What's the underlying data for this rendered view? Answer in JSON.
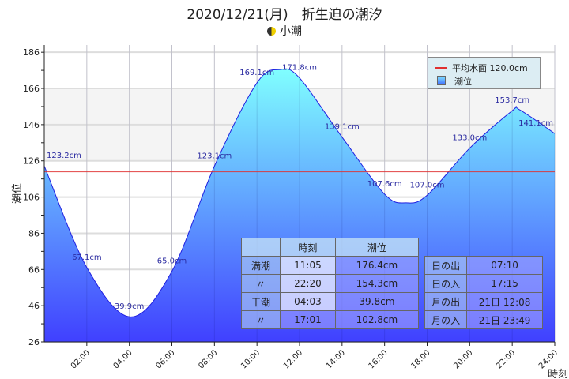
{
  "chart_data": {
    "type": "area",
    "title": "2020/12/21(月)　折生迫の潮汐",
    "subtitle": "小潮",
    "xlabel": "時刻",
    "ylabel": "潮位",
    "xlim": [
      0,
      24
    ],
    "ylim": [
      26,
      190
    ],
    "yticks": [
      26,
      46,
      66,
      86,
      106,
      126,
      146,
      166,
      186
    ],
    "xticks": [
      "02:00",
      "04:00",
      "06:00",
      "08:00",
      "10:00",
      "12:00",
      "14:00",
      "16:00",
      "18:00",
      "20:00",
      "22:00",
      "24:00"
    ],
    "mean_level": 120.0,
    "legend": {
      "mean_label": "平均水面 120.0cm",
      "series_label": "潮位",
      "position": "top-right"
    },
    "points": [
      [
        0,
        123.2
      ],
      [
        2,
        67.1
      ],
      [
        4.05,
        39.8
      ],
      [
        6,
        65.0
      ],
      [
        8,
        123.1
      ],
      [
        10,
        169.1
      ],
      [
        11.083,
        176.4
      ],
      [
        12,
        171.8
      ],
      [
        14,
        139.1
      ],
      [
        16,
        107.6
      ],
      [
        17.017,
        102.8
      ],
      [
        18,
        107.0
      ],
      [
        20,
        133.0
      ],
      [
        22,
        153.7
      ],
      [
        22.333,
        154.3
      ],
      [
        24,
        141.1
      ]
    ],
    "labels": [
      {
        "x": 0,
        "y": 123.2,
        "text": "123.2cm"
      },
      {
        "x": 2,
        "y": 67.1,
        "text": "67.1cm"
      },
      {
        "x": 4,
        "y": 39.9,
        "text": "39.9cm"
      },
      {
        "x": 6,
        "y": 65.0,
        "text": "65.0cm"
      },
      {
        "x": 8,
        "y": 123.1,
        "text": "123.1cm"
      },
      {
        "x": 10,
        "y": 169.1,
        "text": "169.1cm"
      },
      {
        "x": 12,
        "y": 171.8,
        "text": "171.8cm"
      },
      {
        "x": 14,
        "y": 139.1,
        "text": "139.1cm"
      },
      {
        "x": 16,
        "y": 107.6,
        "text": "107.6cm"
      },
      {
        "x": 18,
        "y": 107.0,
        "text": "107.0cm"
      },
      {
        "x": 20,
        "y": 133.0,
        "text": "133.0cm"
      },
      {
        "x": 22,
        "y": 153.7,
        "text": "153.7cm"
      },
      {
        "x": 24,
        "y": 141.1,
        "text": "141.1cm"
      }
    ],
    "colors": {
      "mean": "#e03030",
      "line": "#2020e0",
      "fill_top": "#80ffff",
      "fill_bottom": "#4040ff",
      "label": "#2a2aa0"
    }
  },
  "tide_table": {
    "headers": [
      "",
      "時刻",
      "潮位"
    ],
    "rows": [
      [
        "満潮",
        "11:05",
        "176.4cm"
      ],
      [
        "〃",
        "22:20",
        "154.3cm"
      ],
      [
        "干潮",
        "04:03",
        "39.8cm"
      ],
      [
        "〃",
        "17:01",
        "102.8cm"
      ]
    ]
  },
  "sun_table": {
    "rows": [
      [
        "日の出",
        "07:10"
      ],
      [
        "日の入",
        "17:15"
      ],
      [
        "月の出",
        "21日 12:08"
      ],
      [
        "月の入",
        "21日 23:49"
      ]
    ]
  }
}
